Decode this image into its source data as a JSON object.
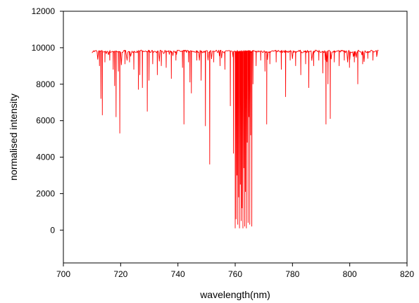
{
  "chart_data": {
    "type": "line",
    "title": "",
    "xlabel": "wavelength(nm)",
    "ylabel": "normalised intensity",
    "xlim": [
      700,
      820
    ],
    "ylim": [
      -1800,
      12000
    ],
    "x_ticks": [
      700,
      720,
      740,
      760,
      780,
      800,
      820
    ],
    "y_ticks": [
      0,
      2000,
      4000,
      6000,
      8000,
      10000,
      12000
    ],
    "grid": false,
    "legend": "none",
    "color": "#ff0000",
    "series": [
      {
        "x_range": [
          710,
          810
        ],
        "baseline": 9800,
        "absorption_lines": [
          [
            712.6,
            9000
          ],
          [
            713.1,
            7200
          ],
          [
            713.6,
            6300
          ],
          [
            714.5,
            9200
          ],
          [
            716.2,
            9300
          ],
          [
            717.4,
            8800
          ],
          [
            717.9,
            7900
          ],
          [
            718.4,
            6200
          ],
          [
            719.2,
            8700
          ],
          [
            719.7,
            5300
          ],
          [
            721.5,
            9100
          ],
          [
            723.1,
            9200
          ],
          [
            724.6,
            8800
          ],
          [
            726.2,
            7700
          ],
          [
            726.7,
            8500
          ],
          [
            727.6,
            7800
          ],
          [
            729.3,
            6500
          ],
          [
            729.9,
            8200
          ],
          [
            731.2,
            9100
          ],
          [
            732.8,
            8500
          ],
          [
            734.2,
            9000
          ],
          [
            735.9,
            8900
          ],
          [
            737.7,
            8300
          ],
          [
            739.3,
            9300
          ],
          [
            741.6,
            8900
          ],
          [
            742.1,
            5800
          ],
          [
            743.7,
            9200
          ],
          [
            744.2,
            8100
          ],
          [
            744.7,
            7500
          ],
          [
            746.6,
            9300
          ],
          [
            748.1,
            8200
          ],
          [
            749.6,
            5700
          ],
          [
            751.1,
            3600
          ],
          [
            752.5,
            9200
          ],
          [
            754.7,
            9000
          ],
          [
            756.4,
            8800
          ],
          [
            758.3,
            6800
          ],
          [
            759.4,
            4200
          ],
          [
            760.0,
            100
          ],
          [
            760.3,
            600
          ],
          [
            760.6,
            3000
          ],
          [
            760.9,
            300
          ],
          [
            761.2,
            1800
          ],
          [
            761.5,
            100
          ],
          [
            761.8,
            2500
          ],
          [
            762.1,
            500
          ],
          [
            762.4,
            1200
          ],
          [
            762.7,
            100
          ],
          [
            763.0,
            3400
          ],
          [
            763.3,
            200
          ],
          [
            763.6,
            2100
          ],
          [
            763.9,
            100
          ],
          [
            764.2,
            4800
          ],
          [
            764.5,
            400
          ],
          [
            764.8,
            6200
          ],
          [
            765.1,
            300
          ],
          [
            765.4,
            5200
          ],
          [
            765.8,
            200
          ],
          [
            766.2,
            8000
          ],
          [
            767.3,
            9000
          ],
          [
            768.9,
            9300
          ],
          [
            770.4,
            8700
          ],
          [
            771.0,
            5800
          ],
          [
            772.1,
            9100
          ],
          [
            774.3,
            9200
          ],
          [
            776.1,
            8800
          ],
          [
            777.6,
            7300
          ],
          [
            779.2,
            9300
          ],
          [
            781.1,
            9000
          ],
          [
            782.9,
            8500
          ],
          [
            784.6,
            9100
          ],
          [
            785.7,
            7800
          ],
          [
            787.4,
            9000
          ],
          [
            789.2,
            9300
          ],
          [
            790.6,
            8600
          ],
          [
            791.7,
            5800
          ],
          [
            792.4,
            8000
          ],
          [
            793.2,
            6100
          ],
          [
            794.6,
            9200
          ],
          [
            796.3,
            9000
          ],
          [
            798.1,
            9300
          ],
          [
            799.9,
            8900
          ],
          [
            801.6,
            9200
          ],
          [
            802.8,
            8000
          ],
          [
            804.5,
            9100
          ],
          [
            806.3,
            9400
          ],
          [
            808.1,
            9300
          ],
          [
            809.4,
            9500
          ]
        ]
      }
    ]
  }
}
